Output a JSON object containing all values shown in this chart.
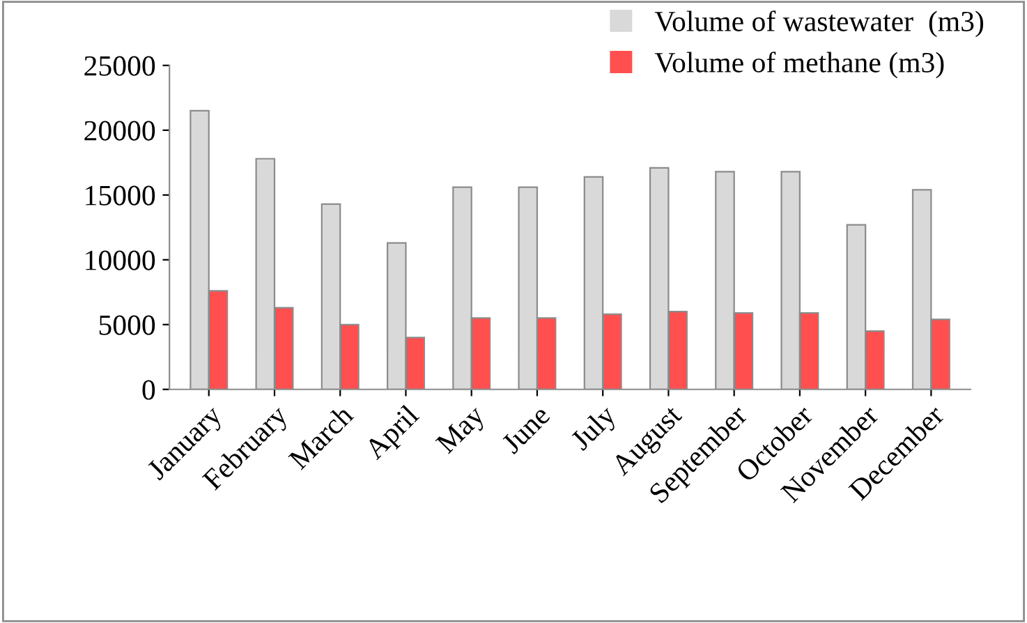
{
  "chart_data": {
    "type": "bar",
    "categories": [
      "January",
      "February",
      "March",
      "April",
      "May",
      "June",
      "July",
      "August",
      "September",
      "October",
      "November",
      "December"
    ],
    "series": [
      {
        "name": "Volume of wastewater  (m3)",
        "color": "#d9d9d9",
        "values": [
          21500,
          17800,
          14300,
          11300,
          15600,
          15600,
          16400,
          17100,
          16800,
          16800,
          12700,
          15400
        ]
      },
      {
        "name": "Volume of methane (m3)",
        "color": "#ff4f4f",
        "values": [
          7600,
          6300,
          5000,
          4000,
          5500,
          5500,
          5800,
          6000,
          5900,
          5900,
          4500,
          5400
        ]
      }
    ],
    "ylim": [
      0,
      25000
    ],
    "yticks": [
      0,
      5000,
      10000,
      15000,
      20000,
      25000
    ],
    "grid": false,
    "legend": "top right"
  }
}
